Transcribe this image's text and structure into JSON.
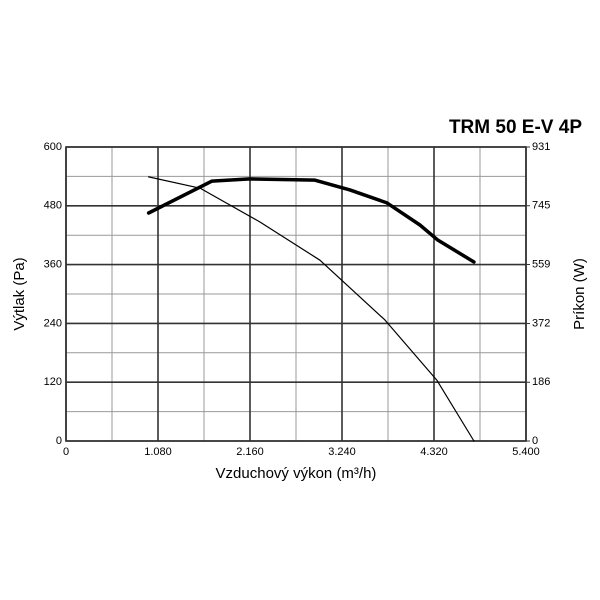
{
  "chart_data": {
    "type": "line",
    "title": "TRM 50 E-V 4P",
    "xlabel": "Vzduchový výkon (m³/h)",
    "ylabel": "Výtlak (Pa)",
    "y2label": "Príkon (W)",
    "xlim": [
      0,
      5400
    ],
    "xticks": [
      0,
      {
        "value": 1080,
        "label": "1.080"
      },
      {
        "value": 2160,
        "label": "2.160"
      },
      {
        "value": 3240,
        "label": "3.240"
      },
      {
        "value": 4320,
        "label": "4.320"
      },
      {
        "value": 5400,
        "label": "5.400"
      }
    ],
    "ylim": [
      0,
      600
    ],
    "yticks": [
      0,
      120,
      240,
      360,
      480,
      600
    ],
    "y2lim": [
      0,
      931
    ],
    "y2ticks": [
      0,
      186,
      372,
      559,
      745,
      931
    ],
    "grid": true,
    "series": [
      {
        "color": "#000000",
        "width": 1.2,
        "x": [
          970,
          1573,
          2277,
          2981,
          3744,
          4354,
          4789
        ],
        "values": [
          539,
          516,
          447,
          369,
          247,
          124,
          0
        ]
      },
      {
        "color": "#000000",
        "width": 3.5,
        "axis": "y2",
        "x": [
          970,
          1714,
          2160,
          2923,
          3333,
          3768,
          4155,
          4366,
          4789
        ],
        "values": [
          722,
          823,
          830,
          826,
          795,
          754,
          684,
          636,
          567
        ]
      }
    ]
  }
}
